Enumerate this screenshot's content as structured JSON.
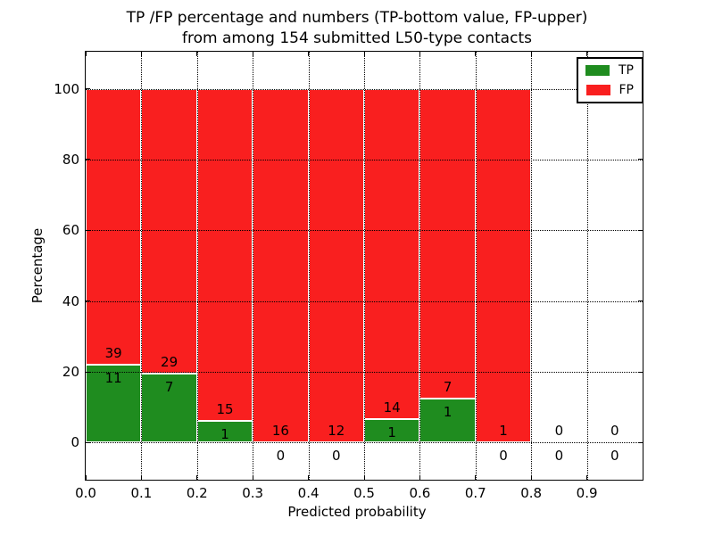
{
  "chart_data": {
    "type": "bar",
    "stacked": true,
    "normalized_to_percent": true,
    "title_lines": [
      "TP /FP percentage and numbers (TP-bottom value, FP-upper)",
      "from among 154 submitted L50-type contacts"
    ],
    "xlabel": "Predicted probability",
    "ylabel": "Percentage",
    "total_submitted": 154,
    "xlim": [
      0.0,
      1.0
    ],
    "ylim": [
      -10.5,
      110.5
    ],
    "bin_edges": [
      0.0,
      0.1,
      0.2,
      0.3,
      0.4,
      0.5,
      0.6,
      0.7,
      0.8,
      0.9,
      1.0
    ],
    "x_tick_values": [
      0.0,
      0.1,
      0.2,
      0.3,
      0.4,
      0.5,
      0.6,
      0.7,
      0.8,
      0.9
    ],
    "x_tick_labels": [
      "0.0",
      "0.1",
      "0.2",
      "0.3",
      "0.4",
      "0.5",
      "0.6",
      "0.7",
      "0.8",
      "0.9"
    ],
    "y_tick_values": [
      0,
      20,
      40,
      60,
      80,
      100
    ],
    "y_tick_labels": [
      "0",
      "20",
      "40",
      "60",
      "80",
      "100"
    ],
    "grid": {
      "visible": true,
      "style": "dotted",
      "color": "#000000"
    },
    "legend": {
      "position": "upper-right"
    },
    "series": [
      {
        "name": "TP",
        "color": "#1f8c1f",
        "counts": [
          11,
          7,
          1,
          0,
          0,
          1,
          1,
          0,
          0,
          0
        ],
        "percentages": [
          22.0,
          19.44,
          6.25,
          0.0,
          0.0,
          6.67,
          12.5,
          0.0,
          0.0,
          0.0
        ]
      },
      {
        "name": "FP",
        "color": "#f91f1f",
        "counts": [
          39,
          29,
          15,
          16,
          12,
          14,
          7,
          1,
          0,
          0
        ],
        "percentages": [
          78.0,
          80.56,
          93.75,
          100.0,
          100.0,
          93.33,
          87.5,
          100.0,
          0.0,
          0.0
        ]
      }
    ],
    "annotation_note": "TP count printed below segment boundary, FP count printed above it"
  },
  "colors": {
    "tp": "#1f8c1f",
    "fp": "#f91f1f",
    "background": "#ffffff",
    "axis": "#000000",
    "bar_edge": "#ffffff"
  }
}
